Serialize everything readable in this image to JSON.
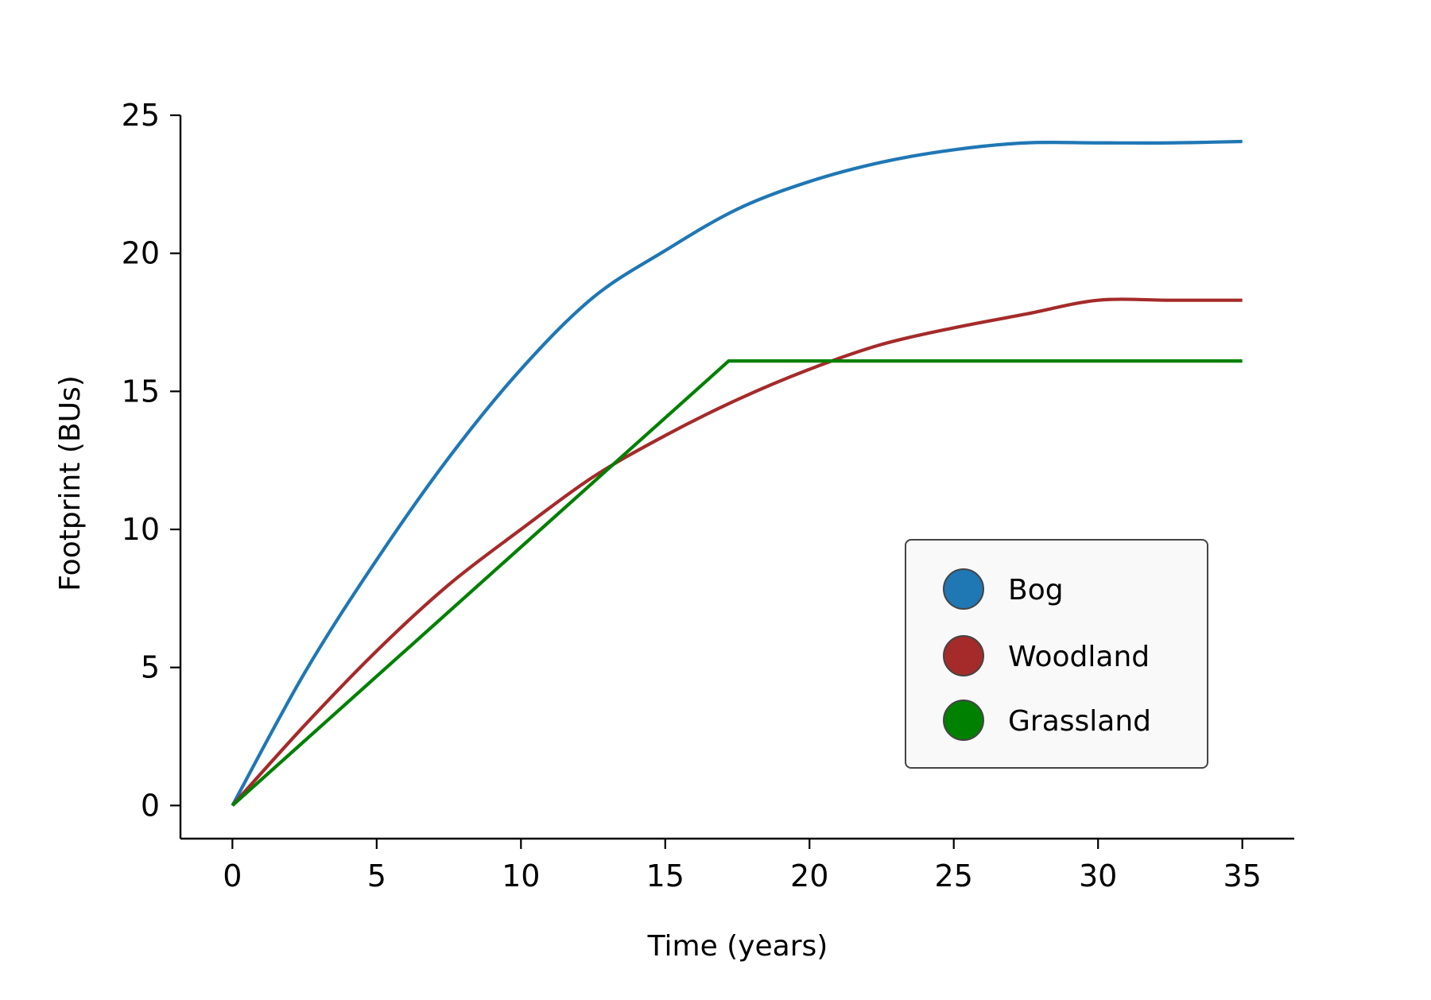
{
  "chart_data": {
    "type": "line",
    "title": "",
    "xlabel": "Time (years)",
    "ylabel": "Footprint (BUs)",
    "xlim": [
      -1.8,
      36.8
    ],
    "ylim": [
      -1.2,
      25
    ],
    "xticks": [
      0,
      5,
      10,
      15,
      20,
      25,
      30,
      35
    ],
    "yticks": [
      0,
      5,
      10,
      15,
      20,
      25
    ],
    "grid": false,
    "legend_position": "lower-right",
    "series": [
      {
        "name": "Bog",
        "color": "#1f77b4",
        "x": [
          0,
          2.5,
          5,
          7.5,
          10,
          12.5,
          15,
          17.5,
          20,
          22.5,
          25,
          27.5,
          30,
          32.5,
          35
        ],
        "y": [
          0,
          4.8,
          8.9,
          12.6,
          15.8,
          18.4,
          20.1,
          21.6,
          22.6,
          23.3,
          23.75,
          24.0,
          24.0,
          24.0,
          24.05
        ]
      },
      {
        "name": "Woodland",
        "color": "#a52a2a",
        "x": [
          0,
          2.5,
          5,
          7.5,
          10,
          12.5,
          15,
          17.5,
          20,
          22.5,
          25,
          27.5,
          30,
          32.5,
          35
        ],
        "y": [
          0,
          2.9,
          5.6,
          8.0,
          10.0,
          11.9,
          13.4,
          14.7,
          15.8,
          16.7,
          17.3,
          17.8,
          18.3,
          18.3,
          18.3
        ]
      },
      {
        "name": "Grassland",
        "color": "#008000",
        "x": [
          0,
          17.2,
          35
        ],
        "y": [
          0,
          16.1,
          16.1
        ]
      }
    ]
  }
}
